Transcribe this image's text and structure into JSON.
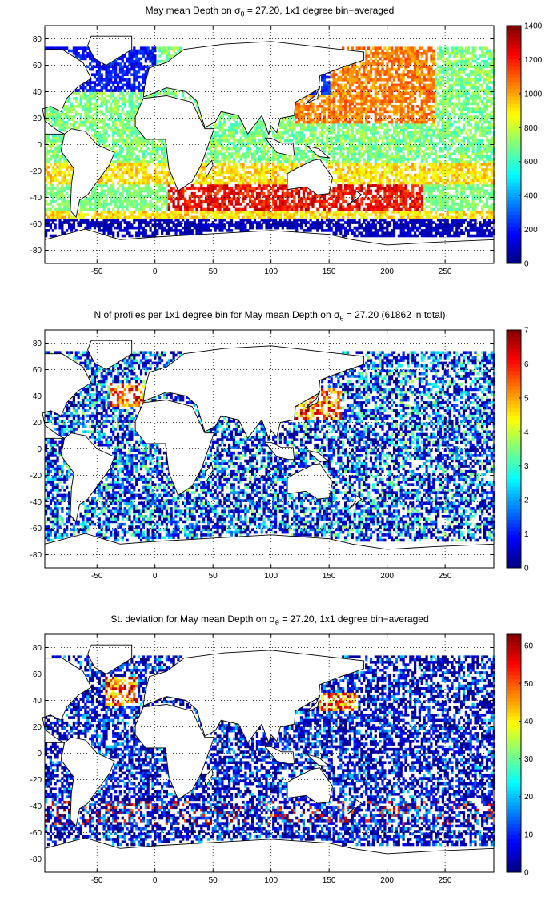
{
  "chart_data": [
    {
      "type": "heatmap",
      "title": "May mean Depth on σθ = 27.20, 1x1 degree bin−averaged",
      "title_parts": {
        "pre": "May mean Depth on σ",
        "sub": "θ",
        "post": " = 27.20, 1x1 degree bin−averaged"
      },
      "xlabel": "",
      "ylabel": "",
      "xlim": [
        -95,
        292
      ],
      "ylim": [
        -90,
        90
      ],
      "xticks": [
        -50,
        0,
        50,
        100,
        150,
        200,
        250
      ],
      "yticks": [
        80,
        60,
        40,
        20,
        0,
        -20,
        -40,
        -60,
        -80
      ],
      "colorbar": {
        "min": 0,
        "max": 1400,
        "ticks": [
          0,
          200,
          400,
          600,
          800,
          1000,
          1200,
          1400
        ]
      },
      "colormap": "jet",
      "grid": true,
      "field": "mean_depth",
      "density": 0.72
    },
    {
      "type": "heatmap",
      "title": "N of profiles per 1x1 degree bin for May mean Depth on σθ = 27.20 (61862 in total)",
      "title_parts": {
        "pre": "N of profiles per 1x1 degree bin for May mean Depth on σ",
        "sub": "θ",
        "post": " = 27.20 (61862 in total)"
      },
      "xlabel": "",
      "ylabel": "",
      "xlim": [
        -95,
        292
      ],
      "ylim": [
        -90,
        90
      ],
      "xticks": [
        -50,
        0,
        50,
        100,
        150,
        200,
        250
      ],
      "yticks": [
        80,
        60,
        40,
        20,
        0,
        -20,
        -40,
        -60,
        -80
      ],
      "colorbar": {
        "min": 0,
        "max": 7,
        "ticks": [
          0,
          1,
          2,
          3,
          4,
          5,
          6,
          7
        ]
      },
      "colormap": "jet",
      "grid": true,
      "field": "count",
      "total_profiles": 61862,
      "density": 0.6
    },
    {
      "type": "heatmap",
      "title": "St. deviation for May mean Depth on σθ = 27.20, 1x1 degree bin−averaged",
      "title_parts": {
        "pre": "St. deviation for May mean Depth on σ",
        "sub": "θ",
        "post": " = 27.20, 1x1 degree bin−averaged"
      },
      "xlabel": "",
      "ylabel": "",
      "xlim": [
        -95,
        292
      ],
      "ylim": [
        -90,
        90
      ],
      "xticks": [
        -50,
        0,
        50,
        100,
        150,
        200,
        250
      ],
      "yticks": [
        80,
        60,
        40,
        20,
        0,
        -20,
        -40,
        -60,
        -80
      ],
      "colorbar": {
        "min": 0,
        "max": 63,
        "ticks": [
          0,
          10,
          20,
          30,
          40,
          50,
          60
        ]
      },
      "colormap": "jet",
      "grid": true,
      "field": "std",
      "density": 0.6
    }
  ]
}
